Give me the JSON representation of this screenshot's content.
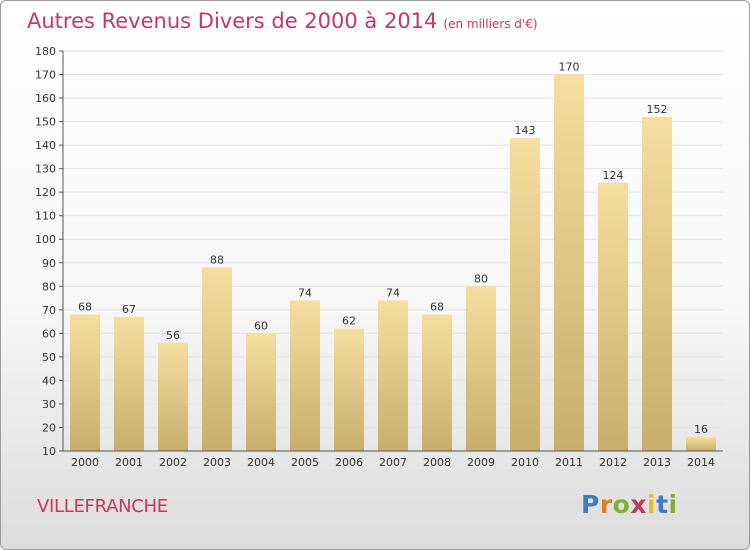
{
  "header": {
    "title": "Autres Revenus Divers de 2000 à 2014",
    "unit": "(en milliers d'€)"
  },
  "footer": {
    "commune": "VILLEFRANCHE",
    "logo": "Proxiti"
  },
  "colors": {
    "title": "#c4395c",
    "bar_light": "#f6dea0",
    "bar_dark": "#c8ad6c",
    "logo_letters": [
      "#3b7ec4",
      "#e07b28",
      "#7ab531",
      "#c4395c",
      "#e2c125",
      "#3b7ec4",
      "#7ab531"
    ]
  },
  "chart_data": {
    "type": "bar",
    "categories": [
      "2000",
      "2001",
      "2002",
      "2003",
      "2004",
      "2005",
      "2006",
      "2007",
      "2008",
      "2009",
      "2010",
      "2011",
      "2012",
      "2013",
      "2014"
    ],
    "values": [
      68,
      67,
      56,
      88,
      60,
      74,
      62,
      74,
      68,
      80,
      143,
      170,
      124,
      152,
      16
    ],
    "ylim": [
      10,
      180
    ],
    "yticks": [
      10,
      20,
      30,
      40,
      50,
      60,
      70,
      80,
      90,
      100,
      110,
      120,
      130,
      140,
      150,
      160,
      170,
      180
    ],
    "grid": true
  }
}
